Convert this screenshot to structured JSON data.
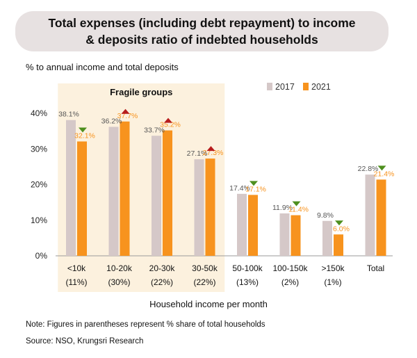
{
  "title_line1": "Total expenses (including debt repayment) to income",
  "title_line2": "& deposits ratio of indebted households",
  "note": "Note: Figures in parentheses represent % share of total households",
  "source": "Source: NSO, Krungsri Research",
  "chart_data": {
    "type": "bar",
    "ylabel": "% to annual income and total deposits",
    "xlabel": "Household income per month",
    "ylim": [
      0,
      40
    ],
    "yticks": [
      "0%",
      "10%",
      "20%",
      "30%",
      "40%"
    ],
    "categories": [
      "<10k",
      "10-20k",
      "20-30k",
      "30-50k",
      "50-100k",
      "100-150k",
      ">150k",
      "Total"
    ],
    "category_shares": [
      "(11%)",
      "(30%)",
      "(22%)",
      "(22%)",
      "(13%)",
      "(2%)",
      "(1%)",
      ""
    ],
    "series": [
      {
        "name": "2017",
        "color": "#d5c8c8",
        "values": [
          38.1,
          36.2,
          33.7,
          27.1,
          17.4,
          11.9,
          9.8,
          22.8
        ],
        "labels": [
          "38.1%",
          "36.2%",
          "33.7%",
          "27.1%",
          "17.4%",
          "11.9%",
          "9.8%",
          "22.8%"
        ]
      },
      {
        "name": "2021",
        "color": "#f7931e",
        "values": [
          32.1,
          37.7,
          35.2,
          27.3,
          17.1,
          11.4,
          6.0,
          21.4
        ],
        "labels": [
          "32.1%",
          "37.7%",
          "35.2%",
          "27.3%",
          "17.1%",
          "11.4%",
          "6.0%",
          "21.4%"
        ]
      }
    ],
    "change_markers": [
      "down",
      "up",
      "up",
      "up",
      "down",
      "down",
      "down",
      "down"
    ],
    "marker_colors": {
      "up": "#b71c1c",
      "down": "#4e8f1e"
    },
    "label_colors": {
      "2017": "#555555",
      "2021": "#f7931e"
    },
    "highlight": {
      "label": "Fragile groups",
      "color": "#fcf1de",
      "categories": [
        "<10k",
        "10-20k",
        "20-30k",
        "30-50k"
      ]
    },
    "legend_position": "top-right",
    "grid": false
  }
}
